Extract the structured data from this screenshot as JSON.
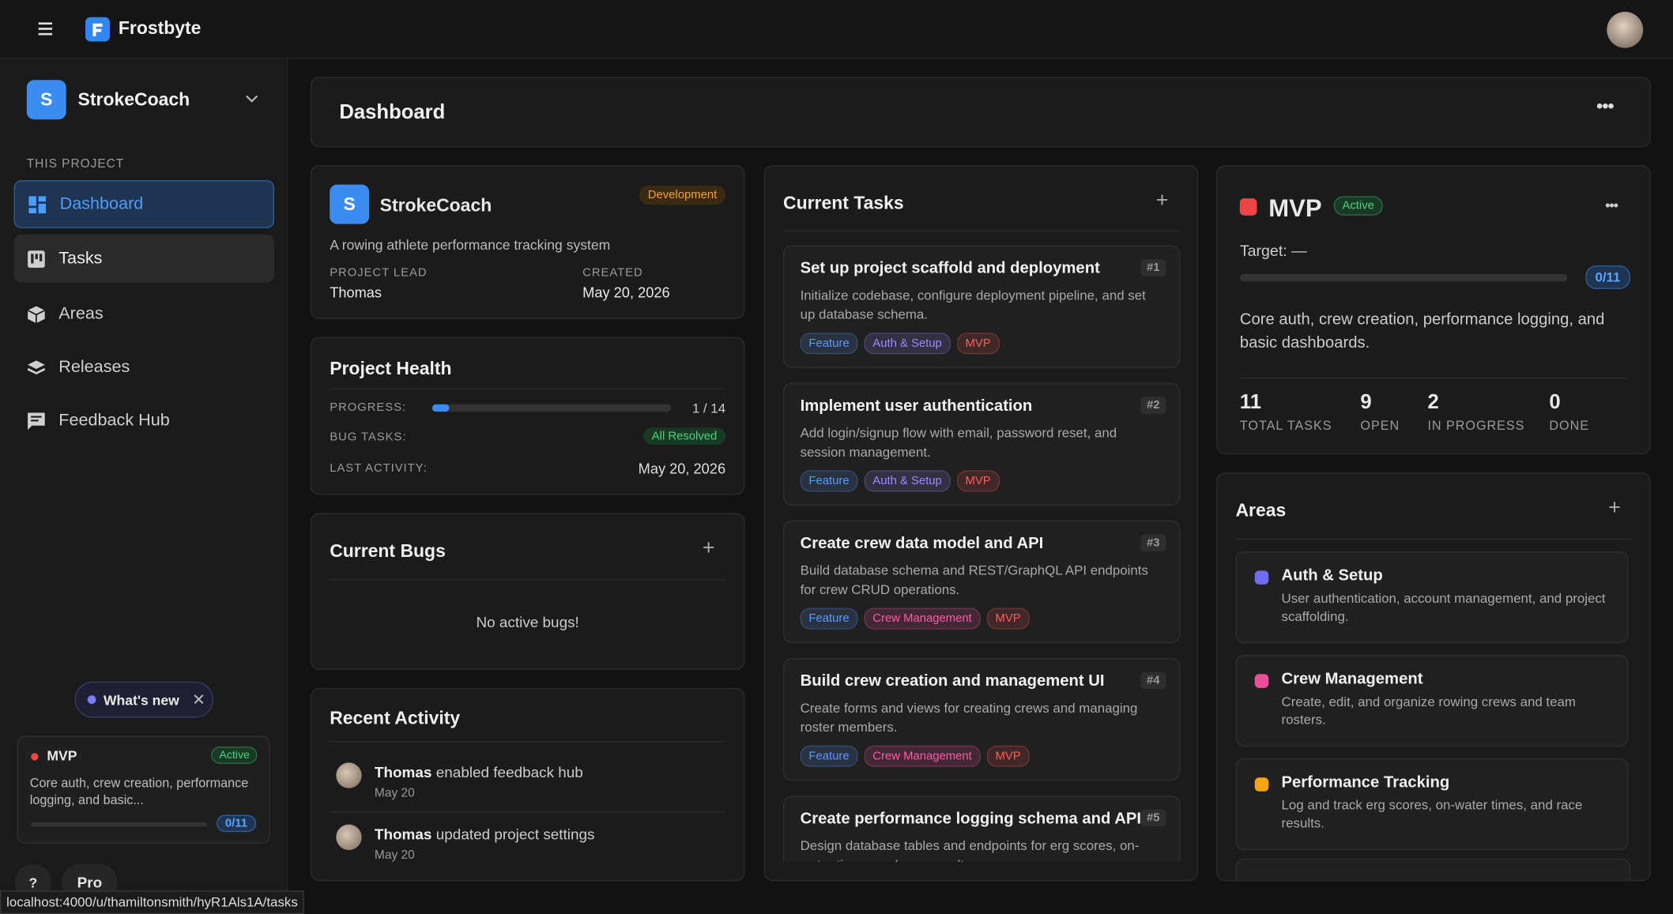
{
  "app": {
    "name": "Frostbyte"
  },
  "sidebar": {
    "project": {
      "initial": "S",
      "name": "StrokeCoach"
    },
    "section": "THIS PROJECT",
    "nav": [
      "Dashboard",
      "Tasks",
      "Areas",
      "Releases",
      "Feedback Hub"
    ],
    "whats_new": "What's new",
    "release": {
      "name": "MVP",
      "status": "Active",
      "description": "Core auth, crew creation, performance logging, and basic...",
      "progress_label": "0/11",
      "done": 0,
      "total": 11
    },
    "help": "?",
    "plan": "Pro",
    "status_url": "localhost:4000/u/thamiltonsmith/hyR1Als1A/tasks"
  },
  "header": {
    "title": "Dashboard"
  },
  "project_card": {
    "initial": "S",
    "name": "StrokeCoach",
    "stage": "Development",
    "description": "A rowing athlete performance tracking system",
    "lead_label": "PROJECT LEAD",
    "lead": "Thomas",
    "created_label": "CREATED",
    "created": "May 20, 2026"
  },
  "health": {
    "title": "Project Health",
    "progress_label": "PROGRESS:",
    "progress": "1 / 14",
    "done": 1,
    "total": 14,
    "bugs_label": "BUG TASKS:",
    "bugs": "All Resolved",
    "activity_label": "LAST ACTIVITY:",
    "activity": "May 20, 2026"
  },
  "bugs": {
    "title": "Current Bugs",
    "empty": "No active bugs!"
  },
  "activity": {
    "title": "Recent Activity",
    "items": [
      {
        "user": "Thomas",
        "action": "enabled feedback hub",
        "date": "May 20"
      },
      {
        "user": "Thomas",
        "action": "updated project settings",
        "date": "May 20"
      }
    ]
  },
  "tasks": {
    "title": "Current Tasks",
    "items": [
      {
        "title": "Set up project scaffold and deployment",
        "id": "#1",
        "description": "Initialize codebase, configure deployment pipeline, and set up database schema.",
        "tags": [
          {
            "label": "Feature",
            "color": "#5a9bff"
          },
          {
            "label": "Auth & Setup",
            "color": "#9a8cff"
          },
          {
            "label": "MVP",
            "color": "#ff5a5a"
          }
        ]
      },
      {
        "title": "Implement user authentication",
        "id": "#2",
        "description": "Add login/signup flow with email, password reset, and session management.",
        "tags": [
          {
            "label": "Feature",
            "color": "#5a9bff"
          },
          {
            "label": "Auth & Setup",
            "color": "#9a8cff"
          },
          {
            "label": "MVP",
            "color": "#ff5a5a"
          }
        ]
      },
      {
        "title": "Create crew data model and API",
        "id": "#3",
        "description": "Build database schema and REST/GraphQL API endpoints for crew CRUD operations.",
        "tags": [
          {
            "label": "Feature",
            "color": "#5a9bff"
          },
          {
            "label": "Crew Management",
            "color": "#ff5aa8"
          },
          {
            "label": "MVP",
            "color": "#ff5a5a"
          }
        ]
      },
      {
        "title": "Build crew creation and management UI",
        "id": "#4",
        "description": "Create forms and views for creating crews and managing roster members.",
        "tags": [
          {
            "label": "Feature",
            "color": "#5a9bff"
          },
          {
            "label": "Crew Management",
            "color": "#ff5aa8"
          },
          {
            "label": "MVP",
            "color": "#ff5a5a"
          }
        ]
      },
      {
        "title": "Create performance logging schema and API",
        "id": "#5",
        "description": "Design database tables and endpoints for erg scores, on-water times, and race results.",
        "tags": []
      }
    ]
  },
  "release": {
    "name": "MVP",
    "status": "Active",
    "target": "Target: —",
    "progress_label": "0/11",
    "done": 0,
    "total": 11,
    "description": "Core auth, crew creation, performance logging, and basic dashboards.",
    "stats": [
      {
        "value": 11,
        "label": "TOTAL TASKS"
      },
      {
        "value": 9,
        "label": "OPEN"
      },
      {
        "value": 2,
        "label": "IN PROGRESS"
      },
      {
        "value": 0,
        "label": "DONE"
      }
    ]
  },
  "areas": {
    "title": "Areas",
    "items": [
      {
        "name": "Auth & Setup",
        "description": "User authentication, account management, and project scaffolding.",
        "color": "#6f6cf0"
      },
      {
        "name": "Crew Management",
        "description": "Create, edit, and organize rowing crews and team rosters.",
        "color": "#ec4f9a"
      },
      {
        "name": "Performance Tracking",
        "description": "Log and track erg scores, on-water times, and race results.",
        "color": "#f5a418"
      }
    ]
  }
}
